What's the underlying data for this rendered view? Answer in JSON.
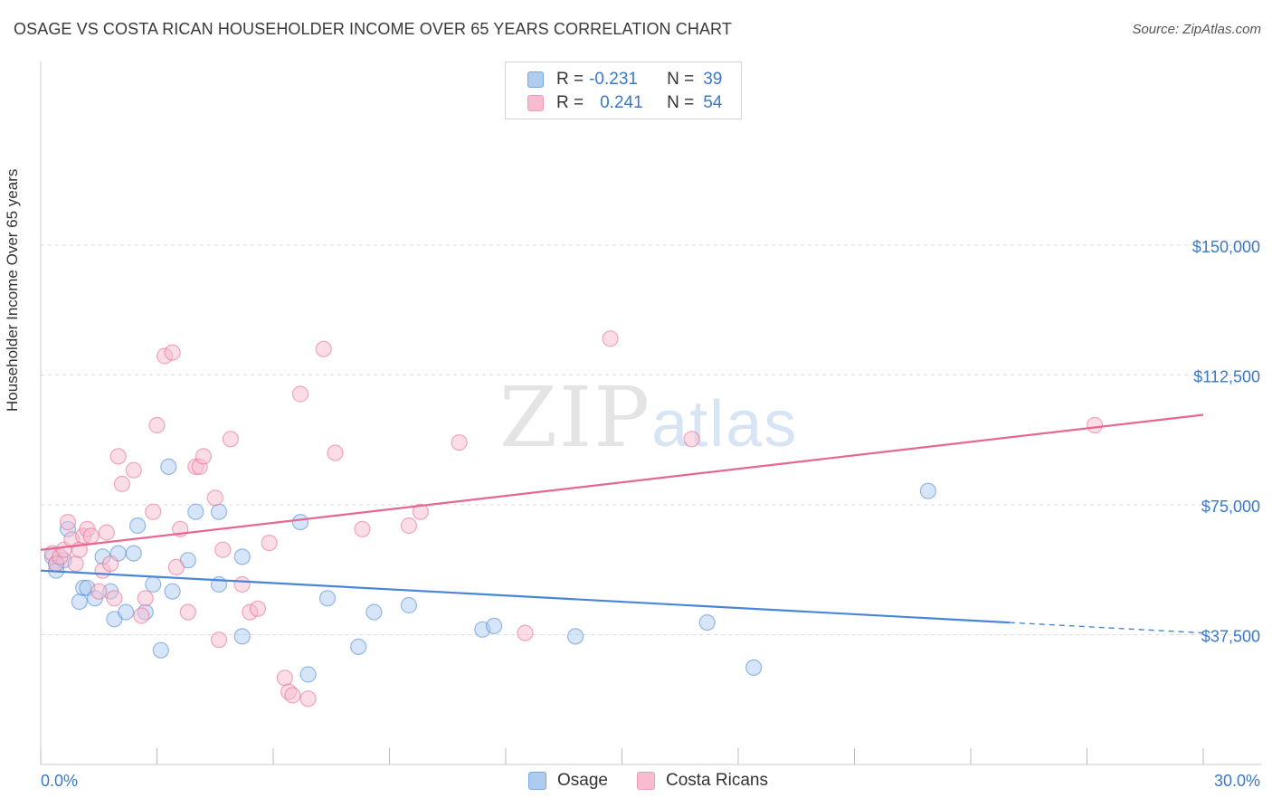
{
  "header": {
    "title": "OSAGE VS COSTA RICAN HOUSEHOLDER INCOME OVER 65 YEARS CORRELATION CHART",
    "source": "Source: ZipAtlas.com"
  },
  "watermark": {
    "zip": "ZIP",
    "atlas": "atlas"
  },
  "legend": {
    "rows": [
      {
        "r_label": "R =",
        "r_value": "-0.231",
        "n_label": "N =",
        "n_value": "39",
        "color": "#aecbf0"
      },
      {
        "r_label": "R =",
        "r_value": "0.241",
        "n_label": "N =",
        "n_value": "54",
        "color": "#f8bcd0"
      }
    ]
  },
  "bottom_legend": [
    "Osage",
    "Costa Ricans"
  ],
  "chart_data": {
    "type": "scatter",
    "title": "OSAGE VS COSTA RICAN HOUSEHOLDER INCOME OVER 65 YEARS CORRELATION CHART",
    "ylabel": "Householder Income Over 65 years",
    "xlabel": "",
    "xlim": [
      0,
      30
    ],
    "ylim": [
      0,
      155000
    ],
    "x_tick_labels": [
      "0.0%",
      "30.0%"
    ],
    "y_ticks": [
      37500,
      75000,
      112500,
      150000
    ],
    "y_tick_labels": [
      "$37,500",
      "$75,000",
      "$112,500",
      "$150,000"
    ],
    "grid": true,
    "legend_position": "top-center",
    "series": [
      {
        "name": "Osage",
        "color": "#4a86d6",
        "fill": "#aecbf0",
        "points": [
          [
            0.3,
            60000
          ],
          [
            0.4,
            58000
          ],
          [
            0.4,
            56000
          ],
          [
            0.6,
            59000
          ],
          [
            0.7,
            68000
          ],
          [
            1.0,
            47000
          ],
          [
            1.1,
            51000
          ],
          [
            1.2,
            51000
          ],
          [
            1.4,
            48000
          ],
          [
            1.6,
            60000
          ],
          [
            1.8,
            50000
          ],
          [
            1.9,
            42000
          ],
          [
            2.0,
            61000
          ],
          [
            2.2,
            44000
          ],
          [
            2.4,
            61000
          ],
          [
            2.5,
            69000
          ],
          [
            2.7,
            44000
          ],
          [
            2.9,
            52000
          ],
          [
            3.1,
            33000
          ],
          [
            3.3,
            86000
          ],
          [
            3.4,
            50000
          ],
          [
            3.8,
            59000
          ],
          [
            4.0,
            73000
          ],
          [
            4.6,
            52000
          ],
          [
            4.6,
            73000
          ],
          [
            5.2,
            60000
          ],
          [
            5.2,
            37000
          ],
          [
            6.7,
            70000
          ],
          [
            6.9,
            26000
          ],
          [
            7.4,
            48000
          ],
          [
            8.2,
            34000
          ],
          [
            8.6,
            44000
          ],
          [
            9.5,
            46000
          ],
          [
            11.4,
            39000
          ],
          [
            11.7,
            40000
          ],
          [
            13.8,
            37000
          ],
          [
            17.2,
            41000
          ],
          [
            18.4,
            28000
          ],
          [
            22.9,
            79000
          ]
        ],
        "trend": {
          "x": [
            0,
            25
          ],
          "y": [
            56000,
            41000
          ],
          "dashed_to": [
            30,
            38000
          ]
        }
      },
      {
        "name": "Costa Ricans",
        "color": "#e6678f",
        "fill": "#f8bcd0",
        "points": [
          [
            0.3,
            61000
          ],
          [
            0.4,
            58000
          ],
          [
            0.5,
            60000
          ],
          [
            0.6,
            62000
          ],
          [
            0.7,
            70000
          ],
          [
            0.8,
            65000
          ],
          [
            0.9,
            58000
          ],
          [
            1.0,
            62000
          ],
          [
            1.1,
            66000
          ],
          [
            1.2,
            68000
          ],
          [
            1.3,
            66000
          ],
          [
            1.5,
            50000
          ],
          [
            1.6,
            56000
          ],
          [
            1.7,
            67000
          ],
          [
            1.8,
            58000
          ],
          [
            1.9,
            48000
          ],
          [
            2.0,
            89000
          ],
          [
            2.1,
            81000
          ],
          [
            2.4,
            85000
          ],
          [
            2.6,
            43000
          ],
          [
            2.7,
            48000
          ],
          [
            2.9,
            73000
          ],
          [
            3.0,
            98000
          ],
          [
            3.2,
            118000
          ],
          [
            3.4,
            119000
          ],
          [
            3.5,
            57000
          ],
          [
            3.6,
            68000
          ],
          [
            3.8,
            44000
          ],
          [
            4.0,
            86000
          ],
          [
            4.1,
            86000
          ],
          [
            4.2,
            89000
          ],
          [
            4.5,
            77000
          ],
          [
            4.6,
            36000
          ],
          [
            4.7,
            62000
          ],
          [
            4.9,
            94000
          ],
          [
            5.2,
            52000
          ],
          [
            5.4,
            44000
          ],
          [
            5.6,
            45000
          ],
          [
            5.9,
            64000
          ],
          [
            6.3,
            25000
          ],
          [
            6.4,
            21000
          ],
          [
            6.5,
            20000
          ],
          [
            6.7,
            107000
          ],
          [
            6.9,
            19000
          ],
          [
            7.3,
            120000
          ],
          [
            7.6,
            90000
          ],
          [
            8.3,
            68000
          ],
          [
            9.5,
            69000
          ],
          [
            9.8,
            73000
          ],
          [
            10.8,
            93000
          ],
          [
            12.5,
            38000
          ],
          [
            14.7,
            123000
          ],
          [
            16.8,
            94000
          ],
          [
            27.2,
            98000
          ]
        ],
        "trend": {
          "x": [
            0,
            30
          ],
          "y": [
            62000,
            101000
          ]
        }
      }
    ]
  }
}
